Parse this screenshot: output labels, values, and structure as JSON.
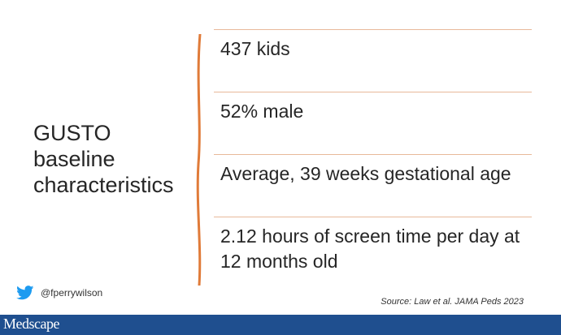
{
  "slide": {
    "title_lines": [
      "GUSTO",
      "baseline",
      "characteristics"
    ],
    "rows": [
      {
        "text": "437 kids"
      },
      {
        "text": "52% male"
      },
      {
        "text": "Average, 39 weeks gestational age"
      },
      {
        "text": "2.12 hours of screen time per day at 12 months old"
      }
    ],
    "accent_color": "#e07b39"
  },
  "footer": {
    "twitter_handle": "@fperrywilson",
    "source": "Source: Law et al. JAMA Peds 2023",
    "brand": "Medscape",
    "bar_color": "#1f4f8f"
  },
  "icons": {
    "social": "twitter-bird-icon"
  }
}
